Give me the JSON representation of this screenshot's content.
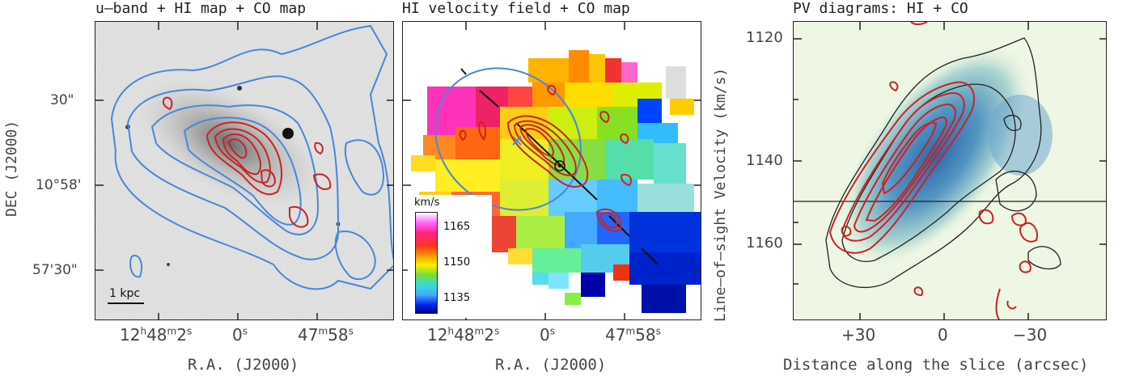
{
  "panels": [
    {
      "title": "u–band + HI map + CO map",
      "y_ticks": [
        "30\"",
        "10°58'",
        "57'30\""
      ],
      "x_ticks": [
        {
          "h": "12",
          "m": "48",
          "s": "2"
        },
        {
          "s": "0"
        },
        {
          "m": "47",
          "s": "58"
        }
      ],
      "ylabel": "DEC (J2000)",
      "xlabel": "R.A. (J2000)",
      "scalebar": "1 kpc"
    },
    {
      "title": "HI velocity field + CO map",
      "x_ticks": [
        {
          "h": "12",
          "m": "48",
          "s": "2"
        },
        {
          "s": "0"
        },
        {
          "m": "47",
          "s": "58"
        }
      ],
      "xlabel": "R.A. (J2000)",
      "colorbar": {
        "unit": "km/s",
        "ticks": [
          "1165",
          "1150",
          "1135"
        ]
      }
    },
    {
      "title": "PV diagrams: HI + CO",
      "ylabel": "Line–of–sight Velocity (km/s)",
      "xlabel": "Distance along the slice (arcsec)",
      "y_ticks": [
        "1120",
        "1140",
        "1160"
      ],
      "x_ticks": [
        "+30",
        "0",
        "−30"
      ]
    }
  ],
  "colors": {
    "hi_contour": "#4a86d8",
    "co_contour": "#cc2222",
    "axis": "#222222"
  }
}
